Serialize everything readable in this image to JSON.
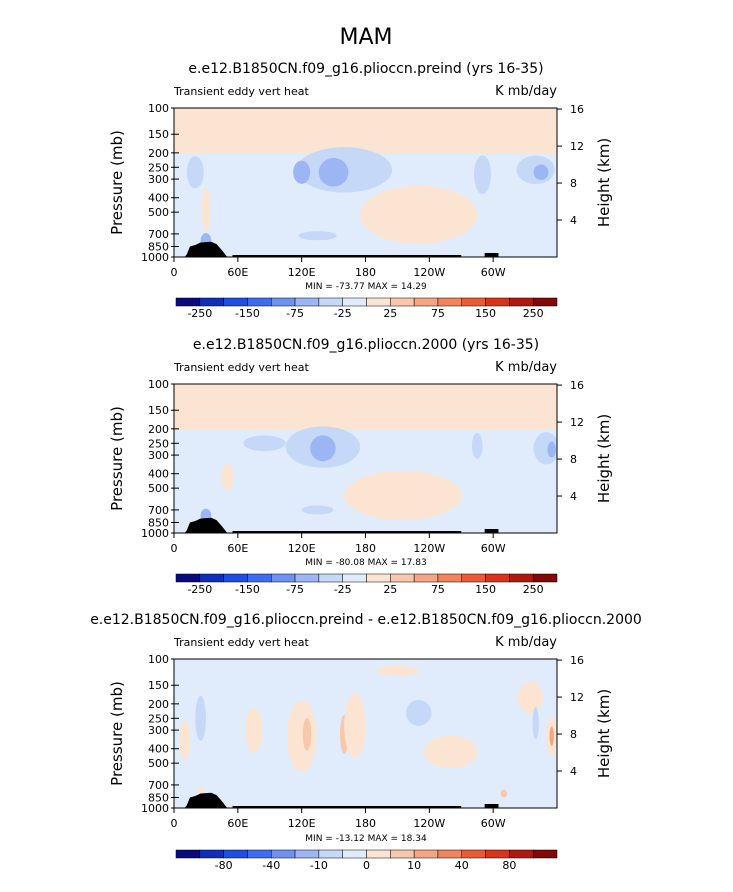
{
  "main_title": "MAM",
  "chart_data": [
    {
      "type": "heatmap",
      "title": "e.e12.B1850CN.f09_g16.plioccn.preind (yrs 16-35)",
      "left_string": "Transient eddy vert heat",
      "right_string": "K mb/day",
      "ylabel": "Pressure (mb)",
      "ylabel_right": "Height (km)",
      "y_ticks": [
        "100",
        "150",
        "200",
        "250",
        "300",
        "400",
        "500",
        "700",
        "850",
        "1000"
      ],
      "y_right_ticks": [
        "16",
        "12",
        "8",
        "4"
      ],
      "x_ticks": [
        "0",
        "60E",
        "120E",
        "180",
        "120W",
        "60W"
      ],
      "min_max": "MIN = -73.77   MAX =  14.29",
      "colorbar_labels": [
        "-250",
        "-150",
        "-75",
        "-25",
        "25",
        "75",
        "150",
        "250"
      ],
      "colors": [
        "#0a0a7a",
        "#0f2fb8",
        "#1e4fe0",
        "#3e6cf0",
        "#6e92f0",
        "#9cb6f4",
        "#c6d8f8",
        "#e0ecfc",
        "#fce4d2",
        "#f8c8ac",
        "#f4a684",
        "#f0845c",
        "#ea5a34",
        "#d8341a",
        "#b01a0e",
        "#800808"
      ]
    },
    {
      "type": "heatmap",
      "title": "e.e12.B1850CN.f09_g16.plioccn.2000 (yrs 16-35)",
      "left_string": "Transient eddy vert heat",
      "right_string": "K mb/day",
      "ylabel": "Pressure (mb)",
      "ylabel_right": "Height (km)",
      "y_ticks": [
        "100",
        "150",
        "200",
        "250",
        "300",
        "400",
        "500",
        "700",
        "850",
        "1000"
      ],
      "y_right_ticks": [
        "16",
        "12",
        "8",
        "4"
      ],
      "x_ticks": [
        "0",
        "60E",
        "120E",
        "180",
        "120W",
        "60W"
      ],
      "min_max": "MIN = -80.08   MAX =  17.83",
      "colorbar_labels": [
        "-250",
        "-150",
        "-75",
        "-25",
        "25",
        "75",
        "150",
        "250"
      ],
      "colors": [
        "#0a0a7a",
        "#0f2fb8",
        "#1e4fe0",
        "#3e6cf0",
        "#6e92f0",
        "#9cb6f4",
        "#c6d8f8",
        "#e0ecfc",
        "#fce4d2",
        "#f8c8ac",
        "#f4a684",
        "#f0845c",
        "#ea5a34",
        "#d8341a",
        "#b01a0e",
        "#800808"
      ]
    },
    {
      "type": "heatmap",
      "title": "e.e12.B1850CN.f09_g16.plioccn.preind - e.e12.B1850CN.f09_g16.plioccn.2000",
      "left_string": "Transient eddy vert heat",
      "right_string": "K mb/day",
      "ylabel": "Pressure (mb)",
      "ylabel_right": "Height (km)",
      "y_ticks": [
        "100",
        "150",
        "200",
        "250",
        "300",
        "400",
        "500",
        "700",
        "850",
        "1000"
      ],
      "y_right_ticks": [
        "16",
        "12",
        "8",
        "4"
      ],
      "x_ticks": [
        "0",
        "60E",
        "120E",
        "180",
        "120W",
        "60W"
      ],
      "min_max": "MIN = -13.12   MAX =  18.34",
      "colorbar_labels": [
        "-80",
        "-40",
        "-10",
        "0",
        "10",
        "40",
        "80"
      ],
      "colors": [
        "#0a0a7a",
        "#0f2fb8",
        "#1e4fe0",
        "#3e6cf0",
        "#6e92f0",
        "#9cb6f4",
        "#c6d8f8",
        "#e0ecfc",
        "#fce4d2",
        "#f8c8ac",
        "#f4a684",
        "#f0845c",
        "#ea5a34",
        "#d8341a",
        "#b01a0e",
        "#800808"
      ]
    }
  ]
}
